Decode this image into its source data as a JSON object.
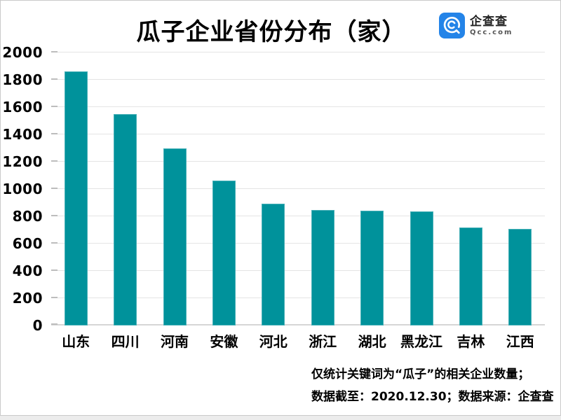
{
  "header": {
    "title": "瓜子企业省份分布（家）",
    "logo": {
      "name": "企查查",
      "domain": "Qcc.com",
      "brand_color": "#2484e8"
    }
  },
  "chart_data": {
    "type": "bar",
    "title": "瓜子企业省份分布（家）",
    "unit": "家",
    "categories": [
      "山东",
      "四川",
      "河南",
      "安徽",
      "河北",
      "浙江",
      "湖北",
      "黑龙江",
      "吉林",
      "江西"
    ],
    "values": [
      1860,
      1550,
      1300,
      1060,
      890,
      845,
      840,
      835,
      720,
      710
    ],
    "xlabel": "",
    "ylabel": "",
    "ylim": [
      0,
      2000
    ],
    "ytick_step": 200,
    "bar_color": "#00929b",
    "gridline_color": "#e4e4e4",
    "grid": true,
    "legend_position": "none"
  },
  "footer": {
    "line1": "仅统计关键词为“瓜子”的相关企业数量；",
    "line2": "数据截至：2020.12.30；数据来源：企查查"
  }
}
